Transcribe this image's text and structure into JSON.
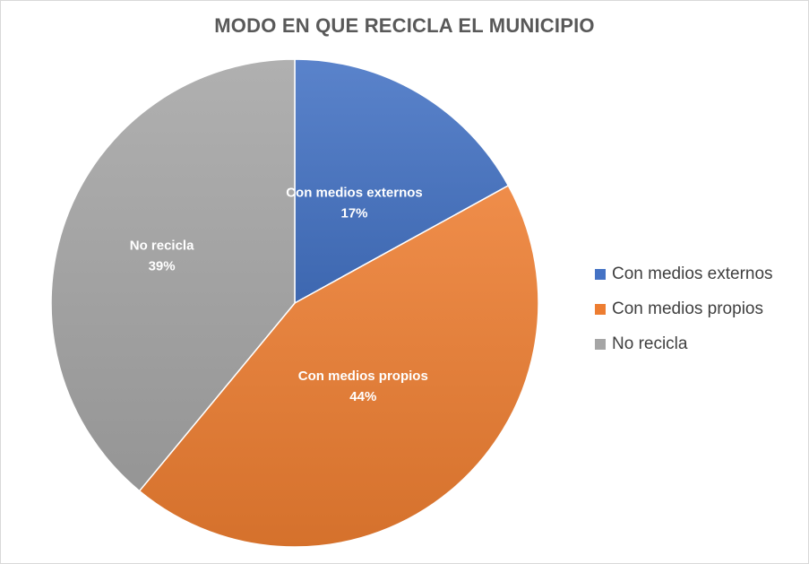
{
  "chart_data": {
    "type": "pie",
    "title": "MODO EN QUE RECICLA EL MUNICIPIO",
    "categories": [
      "Con medios externos",
      "Con medios propios",
      "No recicla"
    ],
    "values": [
      17,
      44,
      39
    ],
    "value_labels": [
      "17%",
      "44%",
      "39%"
    ],
    "colors": [
      "#4472C4",
      "#ED7D31",
      "#A5A5A5"
    ],
    "start_angle_deg": 0,
    "direction": "clockwise",
    "legend_position": "right",
    "data_labels": "inside, category name and percentage"
  }
}
